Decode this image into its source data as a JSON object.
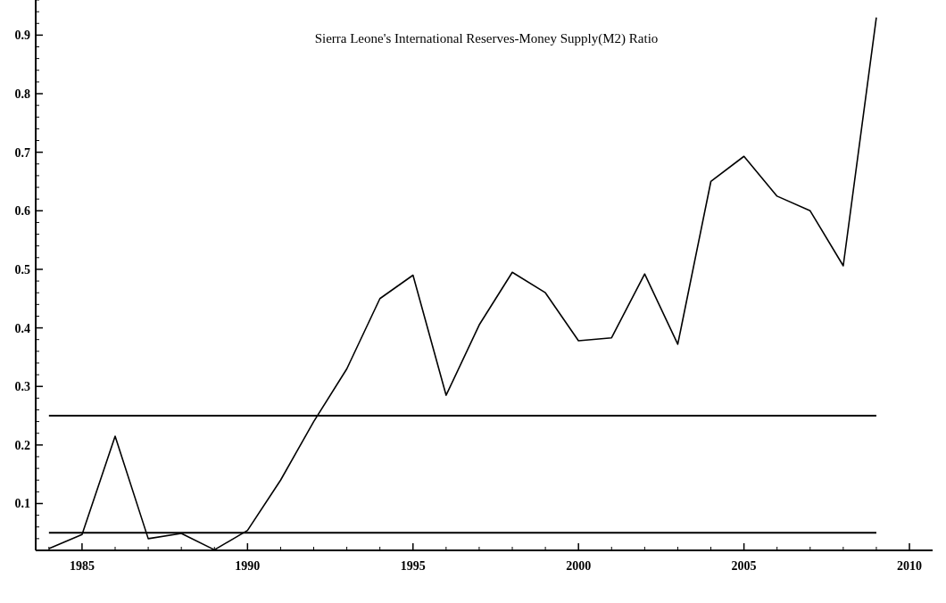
{
  "chart_data": {
    "type": "line",
    "title": "Sierra Leone's International Reserves-Money Supply(M2) Ratio",
    "x": [
      1984,
      1985,
      1986,
      1987,
      1988,
      1989,
      1990,
      1991,
      1992,
      1993,
      1994,
      1995,
      1996,
      1997,
      1998,
      1999,
      2000,
      2001,
      2002,
      2003,
      2004,
      2005,
      2006,
      2007,
      2008,
      2009
    ],
    "series": [
      {
        "color": "#000000",
        "values": [
          0.023,
          0.047,
          0.215,
          0.04,
          0.049,
          0.021,
          0.054,
          0.14,
          0.24,
          0.33,
          0.45,
          0.49,
          0.285,
          0.405,
          0.495,
          0.46,
          0.378,
          0.383,
          0.492,
          0.372,
          0.65,
          0.693,
          0.625,
          0.6,
          0.506,
          0.93
        ]
      }
    ],
    "xlim": [
      1983.6,
      2010.7
    ],
    "ylim": [
      0.02,
      0.96
    ],
    "xticks": [
      1985,
      1990,
      1995,
      2000,
      2005,
      2010
    ],
    "yticks": [
      {
        "value": 0.1,
        "label": "0.1"
      },
      {
        "value": 0.2,
        "label": "0.2"
      },
      {
        "value": 0.3,
        "label": "0.3"
      },
      {
        "value": 0.4,
        "label": "0.4"
      },
      {
        "value": 0.5,
        "label": "0.5"
      },
      {
        "value": 0.6,
        "label": "0.6"
      },
      {
        "value": 0.7,
        "label": "0.7"
      },
      {
        "value": 0.8,
        "label": "0.8"
      },
      {
        "value": 0.9,
        "label": "0.9"
      }
    ],
    "ref_lines": [
      {
        "axis": "y",
        "value": 0.25,
        "color": "#000000"
      },
      {
        "axis": "y",
        "value": 0.05,
        "color": "#000000"
      }
    ],
    "marker": "none",
    "line_style": "solid"
  }
}
